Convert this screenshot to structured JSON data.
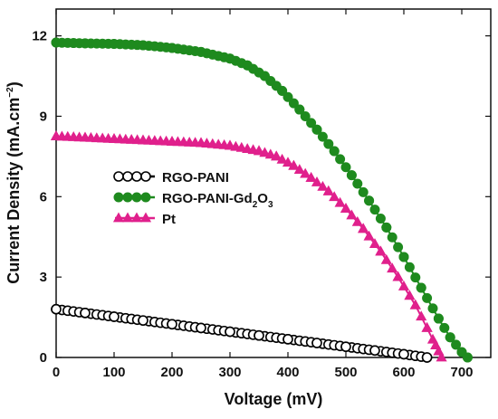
{
  "chart_data": {
    "type": "line",
    "xlabel": "Voltage (mV)",
    "ylabel": {
      "main": "Current Density (mA.cm",
      "superscript": "−2",
      "close": ")"
    },
    "xlim": [
      0,
      750
    ],
    "ylim": [
      0,
      13
    ],
    "xticks": [
      "0",
      "100",
      "200",
      "300",
      "400",
      "500",
      "600",
      "700"
    ],
    "yticks": [
      "0",
      "3",
      "6",
      "9",
      "12"
    ],
    "legend_position": "center-left",
    "series": [
      {
        "name": "RGO-PANI",
        "legend": {
          "base": "RGO-PANI",
          "sub": "",
          "tail": "",
          "sub2": ""
        },
        "color": "#000000",
        "fill": "#ffffff",
        "marker": "circle-open",
        "x": [
          0,
          50,
          100,
          150,
          200,
          250,
          300,
          350,
          400,
          450,
          500,
          550,
          600,
          640
        ],
        "y": [
          1.8,
          1.66,
          1.52,
          1.38,
          1.24,
          1.1,
          0.96,
          0.82,
          0.68,
          0.54,
          0.4,
          0.26,
          0.12,
          0.0
        ]
      },
      {
        "name": "RGO-PANI-Gd2O3",
        "legend": {
          "base": "RGO-PANI-Gd",
          "sub": "2",
          "tail": "O",
          "sub2": "3"
        },
        "color": "#1e8a1e",
        "fill": "#1e8a1e",
        "marker": "circle",
        "x": [
          0,
          50,
          100,
          150,
          200,
          250,
          300,
          330,
          360,
          390,
          420,
          450,
          480,
          510,
          540,
          570,
          600,
          630,
          660,
          680,
          700,
          710
        ],
        "y": [
          11.75,
          11.72,
          11.7,
          11.65,
          11.55,
          11.4,
          11.15,
          10.9,
          10.5,
          9.95,
          9.25,
          8.5,
          7.7,
          6.8,
          5.85,
          4.85,
          3.75,
          2.6,
          1.45,
          0.75,
          0.2,
          0.0
        ]
      },
      {
        "name": "Pt",
        "legend": {
          "base": "Pt",
          "sub": "",
          "tail": "",
          "sub2": ""
        },
        "color": "#e0208c",
        "fill": "#e0208c",
        "marker": "triangle",
        "x": [
          0,
          50,
          100,
          150,
          200,
          250,
          300,
          350,
          380,
          410,
          440,
          470,
          500,
          530,
          560,
          590,
          620,
          640,
          655,
          665
        ],
        "y": [
          8.25,
          8.2,
          8.15,
          8.1,
          8.05,
          8.0,
          7.9,
          7.7,
          7.5,
          7.15,
          6.7,
          6.2,
          5.55,
          4.8,
          3.95,
          3.0,
          1.95,
          1.1,
          0.45,
          0.0
        ]
      }
    ]
  }
}
